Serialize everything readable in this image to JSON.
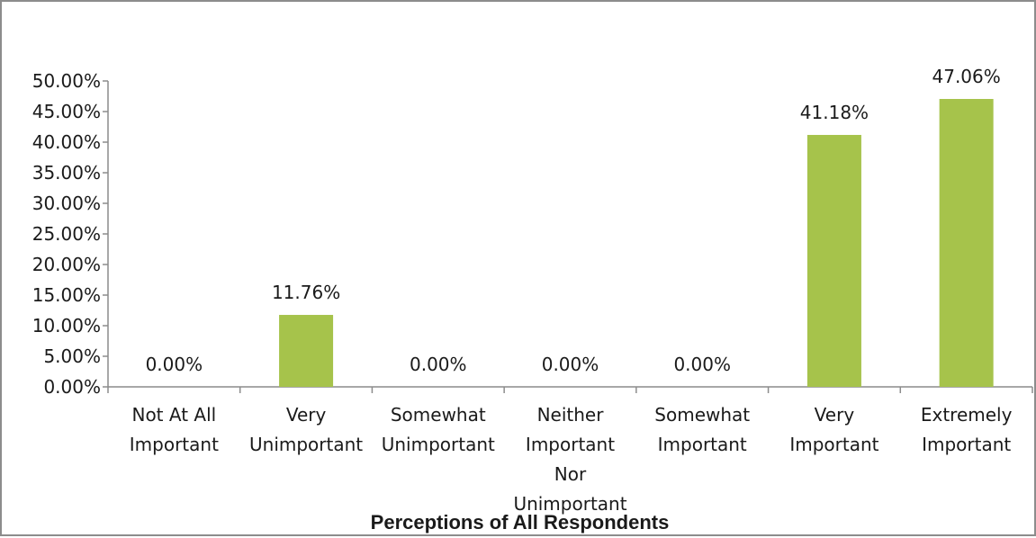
{
  "chart_data": {
    "type": "bar",
    "title": "Perceptions of All Respondents",
    "categories": [
      [
        "Not At All",
        "Important"
      ],
      [
        "Very",
        "Unimportant"
      ],
      [
        "Somewhat",
        "Unimportant"
      ],
      [
        "Neither",
        "Important",
        "Nor",
        "Unimportant"
      ],
      [
        "Somewhat",
        "Important"
      ],
      [
        "Very",
        "Important"
      ],
      [
        "Extremely",
        "Important"
      ]
    ],
    "values": [
      0.0,
      11.76,
      0.0,
      0.0,
      0.0,
      41.18,
      47.06
    ],
    "data_labels": [
      "0.00%",
      "11.76%",
      "0.00%",
      "0.00%",
      "0.00%",
      "41.18%",
      "47.06%"
    ],
    "y_ticks": [
      0,
      5,
      10,
      15,
      20,
      25,
      30,
      35,
      40,
      45,
      50
    ],
    "y_tick_labels": [
      "0.00%",
      "5.00%",
      "10.00%",
      "15.00%",
      "20.00%",
      "25.00%",
      "30.00%",
      "35.00%",
      "40.00%",
      "45.00%",
      "50.00%"
    ],
    "ylim": [
      0,
      50
    ],
    "xlabel": "",
    "ylabel": "",
    "grid": false,
    "legend": "none",
    "bar_color": "#a6c34b",
    "axis_color": "#8c8c8c"
  }
}
